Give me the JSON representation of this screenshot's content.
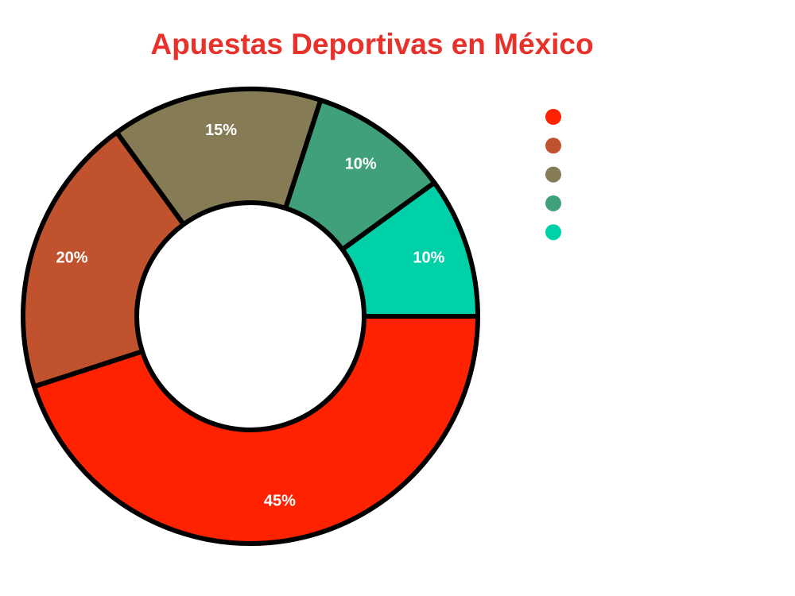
{
  "chart_data": {
    "type": "pie",
    "title": "Apuestas Deportivas en México",
    "values": [
      45,
      20,
      15,
      10,
      10
    ],
    "value_labels": [
      "45%",
      "20%",
      "15%",
      "10%",
      "10%"
    ],
    "colors": [
      "#ff2200",
      "#c0522e",
      "#857b55",
      "#40a07a",
      "#00d0a8"
    ],
    "donut": true,
    "legend": "top-right"
  }
}
